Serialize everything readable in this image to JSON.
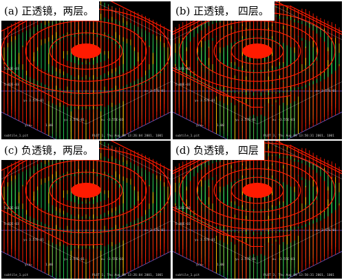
{
  "panels": [
    {
      "title": "(a)  正透镜，两层。",
      "layers": 2,
      "ztop": "5.13E-03",
      "zbot": "5.02E-03",
      "xlabel": "x= 3.57E-01",
      "yaxis": "y= 3.57E-01",
      "ylabel": "y= 3.57E-01",
      "xlabel2": "x= -3.55E-01",
      "ratio": "y/x=",
      "ratio_val": "1.00",
      "file": "subtile_1.pit",
      "plot": "PLOT 1, Thu Aug 09 13:26:04 2001, 1001"
    },
    {
      "title": "(b) 正透镜， 四层。",
      "layers": 4,
      "ztop": "5.16E-03",
      "zbot": "5.00E-03",
      "xlabel": "x= 3.57E-01",
      "yaxis": "y= 3.57E-01",
      "ylabel": "y= 3.57E-01",
      "xlabel2": "x= -3.55E-01",
      "ratio": "y/x=",
      "ratio_val": "1.00",
      "file": "subtile_1.pit",
      "plot": "PLOT 3, Thu Aug 09 13:50:31 2001, 1001"
    },
    {
      "title": "(c) 负透镜，两层。",
      "layers": 2,
      "ztop": "5.13E-03",
      "zbot": "5.02E-03",
      "xlabel": "x= 3.57E-01",
      "yaxis": "y= 3.57E-01",
      "ylabel": "y= 3.57E-01",
      "xlabel2": "x= -3.55E-01",
      "ratio": "y/x=",
      "ratio_val": "1.00",
      "file": "subtile_1.pit",
      "plot": "PLOT 1, Thu Aug 09 13:26:04 2001, 1001"
    },
    {
      "title": "(d)  负透镜， 四层",
      "layers": 4,
      "ztop": "5.16E-03",
      "zbot": "5.00E-03",
      "xlabel": "x= 3.57E-01",
      "yaxis": "y= 3.57E-01",
      "ylabel": "y= 3.57E-01",
      "xlabel2": "x= -3.55E-01",
      "ratio": "y/x=",
      "ratio_val": "1.00",
      "file": "subtile_1.pit",
      "plot": "PLOT 3, Thu Aug 09 13:50:31 2001, 1001"
    }
  ],
  "colors": {
    "background": "#000000",
    "frame": "#ffffff",
    "high": "#ff1a00",
    "mid": "#ffcc00",
    "low": "#22cc55",
    "base": "#6a5acd"
  }
}
